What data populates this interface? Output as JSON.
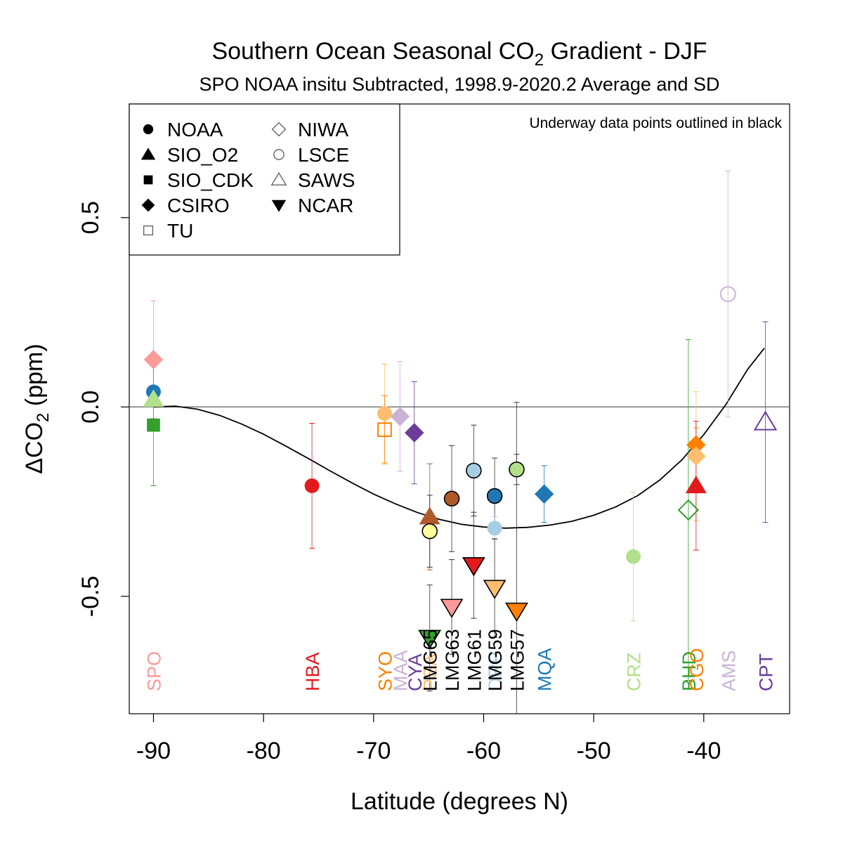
{
  "title_main": "Southern Ocean Seasonal CO",
  "title_sub2": "2",
  "title_suffix": " Gradient - DJF",
  "subtitle": "SPO NOAA insitu Subtracted, 1998.9-2020.2 Average and SD",
  "annotation": "Underway data points outlined in black",
  "chart_data": {
    "type": "scatter",
    "xlabel": "Latitude (degrees N)",
    "ylabel_prefix": "ΔCO",
    "ylabel_sub": "2",
    "ylabel_suffix": " (ppm)",
    "xlim": [
      -92.2,
      -32.2
    ],
    "ylim": [
      -0.81,
      0.8
    ],
    "xticks": [
      -90,
      -80,
      -70,
      -60,
      -50,
      -40
    ],
    "xtick_labels": [
      "-90",
      "-80",
      "-70",
      "-60",
      "-50",
      "-40"
    ],
    "yticks": [
      -0.5,
      0.0,
      0.5
    ],
    "ytick_labels": [
      "-0.5",
      "0.0",
      "0.5"
    ],
    "zero_line": 0,
    "legend": {
      "position": "top-left",
      "items": [
        {
          "label": "NOAA",
          "shape": "circle",
          "filled": true
        },
        {
          "label": "SIO_O2",
          "shape": "triangle",
          "filled": true
        },
        {
          "label": "SIO_CDK",
          "shape": "square",
          "filled": true
        },
        {
          "label": "CSIRO",
          "shape": "diamond",
          "filled": true
        },
        {
          "label": "TU",
          "shape": "square",
          "filled": false
        },
        {
          "label": "NIWA",
          "shape": "diamond",
          "filled": false
        },
        {
          "label": "LSCE",
          "shape": "circle",
          "filled": false
        },
        {
          "label": "SAWS",
          "shape": "triangle",
          "filled": false
        },
        {
          "label": "NCAR",
          "shape": "invtriangle",
          "filled": true
        }
      ]
    },
    "fit_curve": [
      [
        -90,
        0.0
      ],
      [
        -88,
        0.002
      ],
      [
        -86,
        -0.006
      ],
      [
        -84,
        -0.022
      ],
      [
        -82,
        -0.045
      ],
      [
        -80,
        -0.072
      ],
      [
        -78,
        -0.103
      ],
      [
        -76,
        -0.135
      ],
      [
        -74,
        -0.168
      ],
      [
        -72,
        -0.2
      ],
      [
        -70,
        -0.23
      ],
      [
        -68,
        -0.256
      ],
      [
        -66,
        -0.279
      ],
      [
        -64,
        -0.297
      ],
      [
        -62,
        -0.31
      ],
      [
        -60,
        -0.317
      ],
      [
        -58,
        -0.32
      ],
      [
        -56,
        -0.318
      ],
      [
        -54,
        -0.312
      ],
      [
        -52,
        -0.302
      ],
      [
        -50,
        -0.286
      ],
      [
        -48,
        -0.264
      ],
      [
        -46,
        -0.234
      ],
      [
        -44,
        -0.193
      ],
      [
        -42,
        -0.14
      ],
      [
        -40,
        -0.073
      ],
      [
        -38,
        0.006
      ],
      [
        -36,
        0.1
      ],
      [
        -34.5,
        0.155
      ]
    ],
    "points": [
      {
        "site": "SPO",
        "x": -90,
        "y": 0.04,
        "sd": 0.0,
        "shape": "circle",
        "filled": true,
        "color": "#1f78b4",
        "outlined": false
      },
      {
        "site": "SPO",
        "x": -90,
        "y": 0.125,
        "sd": 0.155,
        "shape": "diamond",
        "filled": true,
        "color": "#fb9a99",
        "outlined": false
      },
      {
        "site": "SPO",
        "x": -90,
        "y": 0.02,
        "sd": 0.0,
        "shape": "triangle",
        "filled": true,
        "color": "#b2df8a",
        "outlined": false
      },
      {
        "site": "SPO",
        "x": -90,
        "y": -0.048,
        "sd": 0.16,
        "shape": "square",
        "filled": true,
        "color": "#33a02c",
        "outlined": false
      },
      {
        "site": "HBA",
        "x": -75.6,
        "y": -0.208,
        "sd": 0.165,
        "shape": "circle",
        "filled": true,
        "color": "#e31a1c",
        "outlined": false
      },
      {
        "site": "SYO",
        "x": -69,
        "y": -0.017,
        "sd": 0.13,
        "shape": "circle",
        "filled": true,
        "color": "#fdbf6f",
        "outlined": false
      },
      {
        "site": "SYO",
        "x": -69,
        "y": -0.06,
        "sd": 0.09,
        "shape": "square",
        "filled": false,
        "color": "#ff7f00",
        "outlined": false
      },
      {
        "site": "MAA",
        "x": -67.6,
        "y": -0.025,
        "sd": 0.145,
        "shape": "diamond",
        "filled": true,
        "color": "#cab2d6",
        "outlined": false
      },
      {
        "site": "CYA",
        "x": -66.3,
        "y": -0.068,
        "sd": 0.135,
        "shape": "diamond",
        "filled": true,
        "color": "#6a3d9a",
        "outlined": false
      },
      {
        "site": "PSA",
        "x": -64.9,
        "y": -0.29,
        "sd": 0.14,
        "shape": "triangle",
        "filled": true,
        "color": "#b15928",
        "outlined": false
      },
      {
        "site": "PSA",
        "x": -64.9,
        "y": -0.328,
        "sd": 0.095,
        "shape": "circle",
        "filled": true,
        "color": "#ffff99",
        "outlined": true
      },
      {
        "site": "LMG65",
        "x": -64.9,
        "y": -0.61,
        "sd": 0.14,
        "shape": "invtriangle",
        "filled": true,
        "color": "#33a02c",
        "outlined": true
      },
      {
        "site": "LMG63",
        "x": -62.9,
        "y": -0.242,
        "sd": 0.14,
        "shape": "circle",
        "filled": true,
        "color": "#b15928",
        "outlined": true
      },
      {
        "site": "LMG63",
        "x": -62.9,
        "y": -0.528,
        "sd": 0.125,
        "shape": "invtriangle",
        "filled": true,
        "color": "#fb9a99",
        "outlined": true
      },
      {
        "site": "LMG61",
        "x": -60.9,
        "y": -0.168,
        "sd": 0.12,
        "shape": "circle",
        "filled": true,
        "color": "#a6cee3",
        "outlined": true
      },
      {
        "site": "LMG61",
        "x": -60.9,
        "y": -0.418,
        "sd": 0.14,
        "shape": "invtriangle",
        "filled": true,
        "color": "#e31a1c",
        "outlined": true
      },
      {
        "site": "DRP",
        "x": -59,
        "y": -0.235,
        "sd": 0.1,
        "shape": "circle",
        "filled": true,
        "color": "#1f78b4",
        "outlined": true
      },
      {
        "site": "DRP",
        "x": -59,
        "y": -0.32,
        "sd": 0.03,
        "shape": "circle",
        "filled": true,
        "color": "#a6cee3",
        "outlined": false
      },
      {
        "site": "LMG59",
        "x": -59,
        "y": -0.478,
        "sd": 0.13,
        "shape": "invtriangle",
        "filled": true,
        "color": "#fdbf6f",
        "outlined": true
      },
      {
        "site": "LMG57",
        "x": -57,
        "y": -0.165,
        "sd": 0.04,
        "shape": "circle",
        "filled": true,
        "color": "#b2df8a",
        "outlined": true
      },
      {
        "site": "LMG57",
        "x": -57,
        "y": -0.538,
        "sd": 0.55,
        "shape": "invtriangle",
        "filled": true,
        "color": "#ff7f00",
        "outlined": true
      },
      {
        "site": "MQA",
        "x": -54.5,
        "y": -0.23,
        "sd": 0.075,
        "shape": "diamond",
        "filled": true,
        "color": "#1f78b4",
        "outlined": false
      },
      {
        "site": "CRZ",
        "x": -46.4,
        "y": -0.395,
        "sd": 0.17,
        "shape": "circle",
        "filled": true,
        "color": "#b2df8a",
        "outlined": false
      },
      {
        "site": "BHD",
        "x": -41.4,
        "y": -0.272,
        "sd": 0.45,
        "shape": "diamond",
        "filled": false,
        "color": "#33a02c",
        "outlined": false
      },
      {
        "site": "CGO",
        "x": -40.7,
        "y": -0.1,
        "sd": 0.045,
        "shape": "diamond",
        "filled": true,
        "color": "#ff7f00",
        "outlined": false
      },
      {
        "site": "CGO",
        "x": -40.7,
        "y": -0.13,
        "sd": 0.17,
        "shape": "diamond",
        "filled": true,
        "color": "#fdbf6f",
        "outlined": false
      },
      {
        "site": "CGO",
        "x": -40.7,
        "y": -0.208,
        "sd": 0.17,
        "shape": "triangle",
        "filled": true,
        "color": "#e31a1c",
        "outlined": false
      },
      {
        "site": "AMS",
        "x": -37.8,
        "y": 0.298,
        "sd": 0.325,
        "shape": "circle",
        "filled": false,
        "color": "#cab2d6",
        "outlined": false
      },
      {
        "site": "CPT",
        "x": -34.4,
        "y": -0.04,
        "sd": 0.265,
        "shape": "triangle",
        "filled": false,
        "color": "#6a3d9a",
        "outlined": false
      }
    ],
    "site_labels": [
      {
        "text": "SPO",
        "x": -90,
        "color": "#fb9a99"
      },
      {
        "text": "HBA",
        "x": -75.6,
        "color": "#e31a1c"
      },
      {
        "text": "SYO",
        "x": -69,
        "color": "#ff7f00"
      },
      {
        "text": "MAA",
        "x": -67.6,
        "color": "#cab2d6"
      },
      {
        "text": "CYA",
        "x": -66.3,
        "color": "#6a3d9a"
      },
      {
        "text": "PSA",
        "x": -64.9,
        "color": "#fdbf6f"
      },
      {
        "text": "LMG65",
        "x": -64.9,
        "color": "#000000"
      },
      {
        "text": "LMG63",
        "x": -62.9,
        "color": "#000000"
      },
      {
        "text": "LMG61",
        "x": -60.9,
        "color": "#000000"
      },
      {
        "text": "DRP",
        "x": -59,
        "color": "#a6cee3"
      },
      {
        "text": "LMG59",
        "x": -59,
        "color": "#000000"
      },
      {
        "text": "LMG57",
        "x": -57,
        "color": "#000000"
      },
      {
        "text": "MQA",
        "x": -54.5,
        "color": "#1f78b4"
      },
      {
        "text": "CRZ",
        "x": -46.4,
        "color": "#b2df8a"
      },
      {
        "text": "BHD",
        "x": -41.4,
        "color": "#33a02c"
      },
      {
        "text": "CGO",
        "x": -40.7,
        "color": "#ff7f00"
      },
      {
        "text": "AMS",
        "x": -37.8,
        "color": "#cab2d6"
      },
      {
        "text": "CPT",
        "x": -34.4,
        "color": "#6a3d9a"
      }
    ]
  }
}
